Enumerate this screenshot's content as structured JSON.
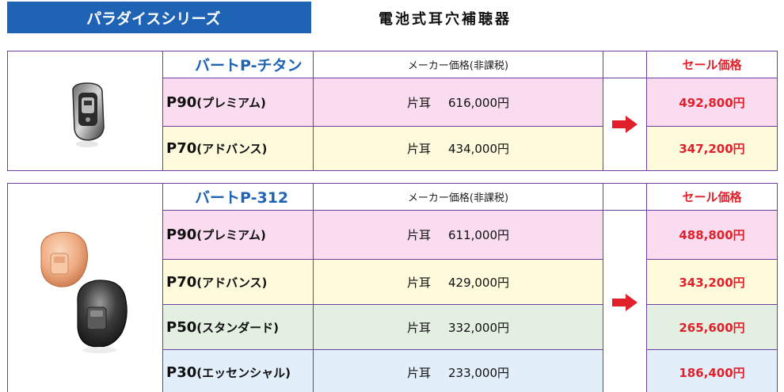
{
  "header": {
    "series_banner": "パラダイスシリーズ",
    "page_title": "電池式耳穴補聴器"
  },
  "tables": [
    {
      "series_name": "バートP-チタン",
      "maker_price_header": "メーカー価格(非課税)",
      "sale_header": "セール価格",
      "rows": [
        {
          "code": "P90",
          "grade": "(プレミアム)",
          "side": "片耳",
          "maker_price": "616,000円",
          "sale_price": "492,800円",
          "bg": "pink"
        },
        {
          "code": "P70",
          "grade": "(アドバンス)",
          "side": "片耳",
          "maker_price": "434,000円",
          "sale_price": "347,200円",
          "bg": "yellow"
        }
      ]
    },
    {
      "series_name": "バートP-312",
      "maker_price_header": "メーカー価格(非課税)",
      "sale_header": "セール価格",
      "rows": [
        {
          "code": "P90",
          "grade": "(プレミアム)",
          "side": "片耳",
          "maker_price": "611,000円",
          "sale_price": "488,800円",
          "bg": "pink"
        },
        {
          "code": "P70",
          "grade": "(アドバンス)",
          "side": "片耳",
          "maker_price": "429,000円",
          "sale_price": "343,200円",
          "bg": "yellow"
        },
        {
          "code": "P50",
          "grade": "(スタンダード)",
          "side": "片耳",
          "maker_price": "332,000円",
          "sale_price": "265,600円",
          "bg": "green"
        },
        {
          "code": "P30",
          "grade": "(エッセンシャル)",
          "side": "片耳",
          "maker_price": "233,000円",
          "sale_price": "186,400円",
          "bg": "blue"
        }
      ]
    }
  ],
  "colors": {
    "banner": "#1f63b5",
    "series_name": "#1f63b5",
    "sale_text": "#e0202a",
    "arrow": "#e0202a",
    "border": "#6b3fa0"
  },
  "icons": {
    "arrow": "right-arrow-icon",
    "product_image_1": "hearing-aid-titanium-image",
    "product_image_2": "hearing-aid-312-image"
  }
}
